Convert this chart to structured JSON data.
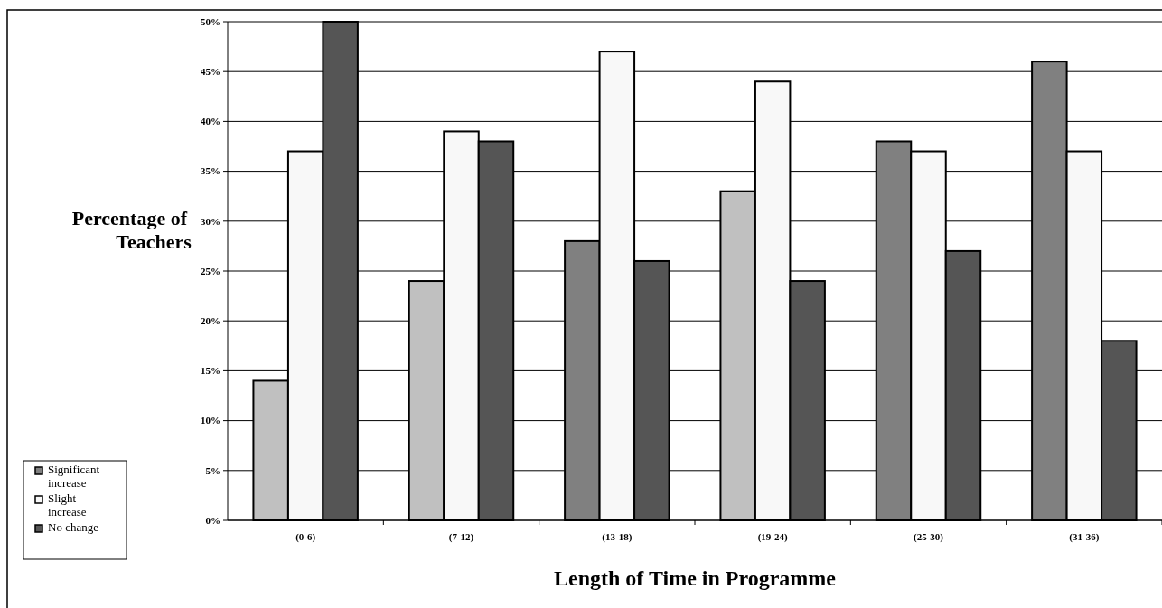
{
  "chart_data": {
    "type": "bar",
    "xlabel": "Length of Time in Programme",
    "ylabel": "Percentage of Teachers",
    "categories": [
      "(0-6)",
      "(7-12)",
      "(13-18)",
      "(19-24)",
      "(25-30)",
      "(31-36)"
    ],
    "series": [
      {
        "name": "Significant increase",
        "color": "#808080",
        "colors": [
          "#c0c0c0",
          "#c0c0c0",
          "#808080",
          "#c0c0c0",
          "#808080",
          "#808080"
        ],
        "values": [
          14,
          24,
          28,
          33,
          38,
          46
        ]
      },
      {
        "name": "Slight increase",
        "color": "#f8f8f8",
        "values": [
          37,
          39,
          47,
          44,
          37,
          37
        ]
      },
      {
        "name": "No change",
        "color": "#555555",
        "values": [
          50,
          38,
          26,
          24,
          27,
          18
        ]
      }
    ],
    "ylim": [
      0,
      50
    ],
    "yticks": [
      {
        "value": 0,
        "label": "0%"
      },
      {
        "value": 5,
        "label": "5%"
      },
      {
        "value": 10,
        "label": "10%"
      },
      {
        "value": 15,
        "label": "15%"
      },
      {
        "value": 20,
        "label": "20%"
      },
      {
        "value": 25,
        "label": "25%"
      },
      {
        "value": 30,
        "label": "30%"
      },
      {
        "value": 35,
        "label": "35%"
      },
      {
        "value": 40,
        "label": "40%"
      },
      {
        "value": 45,
        "label": "45%"
      },
      {
        "value": 50,
        "label": "50%"
      }
    ],
    "grid": "y",
    "legend": "left"
  }
}
